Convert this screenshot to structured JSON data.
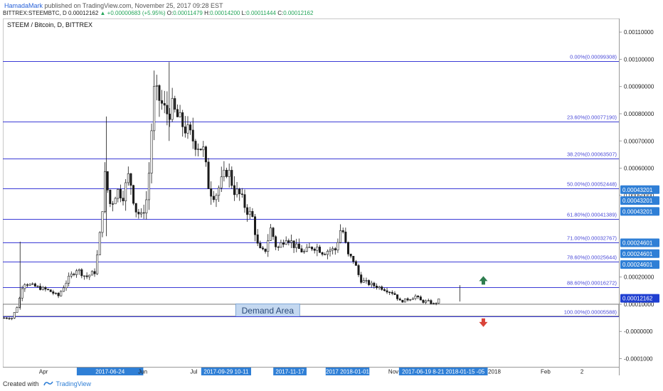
{
  "header": {
    "author": "HamadaMark",
    "published_text": "published on TradingView.com, November 25, 2017 09:28 EST",
    "symbol": "BITTREX:STEEMBTC, D",
    "last": "0.00012162",
    "change": "▲ +0.00000683 (+5.95%)",
    "o_label": "O:",
    "o": "0.00011479",
    "h_label": "H:",
    "h": "0.00014200",
    "l_label": "L:",
    "l": "0.00011444",
    "c_label": "C:",
    "c": "0.00012162"
  },
  "colors": {
    "fib_line": "#3b3bd6",
    "fib_text": "#4a4ad8",
    "candle": "#1a1a1a",
    "axis_blue_bg": "#2f7fd6",
    "demand_box": "#c4d8f0",
    "up_arrow": "#2e7d4f",
    "down_arrow": "#d9443a",
    "date_highlight": "#2f7fd6"
  },
  "footer": {
    "created_with": "Created with",
    "brand": "TradingView"
  },
  "chart_data": {
    "type": "candlestick",
    "title": "STEEM / Bitcoin, D, BITTREX",
    "ylim": [
      -0.00013,
      0.00115
    ],
    "y_ticks": [
      "0.00110000",
      "0.00100000",
      "0.00090000",
      "0.00080000",
      "0.00070000",
      "0.00060000",
      "0.00050000",
      "0.00020000",
      "0.00010000",
      "-0.0000000",
      "-0.0001000"
    ],
    "y_tick_values": [
      0.0011,
      0.001,
      0.0009,
      0.0008,
      0.0007,
      0.0006,
      0.0005,
      0.0002,
      0.0001,
      0.0,
      -0.0001
    ],
    "y_badges": [
      {
        "label": "0.00043201",
        "value": 0.000521
      },
      {
        "label": "0.00043201",
        "value": 0.000481
      },
      {
        "label": "0.00043201",
        "value": 0.000441
      },
      {
        "label": "0.00024601",
        "value": 0.000326
      },
      {
        "label": "0.00024601",
        "value": 0.000286
      },
      {
        "label": "0.00024601",
        "value": 0.000246
      },
      {
        "label": "0.00012162",
        "value": 0.00012162,
        "current": true
      }
    ],
    "fib_levels": [
      {
        "label": "0.00%(0.00099308)",
        "value": 0.00099308
      },
      {
        "label": "23.60%(0.00077190)",
        "value": 0.0007719
      },
      {
        "label": "38.20%(0.00063507)",
        "value": 0.00063507
      },
      {
        "label": "50.00%(0.00052448)",
        "value": 0.00052448
      },
      {
        "label": "61.80%(0.00041389)",
        "value": 0.00041389
      },
      {
        "label": "71.00%(0.00032767)",
        "value": 0.00032767
      },
      {
        "label": "78.60%(0.00025644)",
        "value": 0.00025644
      },
      {
        "label": "88.60%(0.00016272)",
        "value": 0.00016272
      },
      {
        "label": "100.00%(0.00005588)",
        "value": 5.588e-05
      }
    ],
    "demand_area": {
      "label": "Demand Area",
      "top": 0.0001,
      "bottom": 5.588e-05
    },
    "x_ticks": [
      {
        "label": "Apr",
        "pos": 0.066
      },
      {
        "label": "Jun",
        "pos": 0.227
      },
      {
        "label": "Jul",
        "pos": 0.31
      },
      {
        "label": "Nov",
        "pos": 0.634
      },
      {
        "label": "2018",
        "pos": 0.798
      },
      {
        "label": "Feb",
        "pos": 0.881
      },
      {
        "label": "2",
        "pos": 0.94
      }
    ],
    "x_highlight_segments": [
      {
        "label": "2017-06-24",
        "start": 0.12,
        "end": 0.228
      },
      {
        "label": "2017-09-29  10-11",
        "start": 0.322,
        "end": 0.403
      },
      {
        "label": "2017-11-17",
        "start": 0.439,
        "end": 0.493
      },
      {
        "label": "2017 2018-01-01",
        "start": 0.524,
        "end": 0.595
      },
      {
        "label": "2017-06-19  8-21  2018-01-15 -05",
        "start": 0.643,
        "end": 0.787
      }
    ],
    "price_path": [
      {
        "t": 0.0,
        "v": 5e-05
      },
      {
        "t": 0.015,
        "v": 5e-05
      },
      {
        "t": 0.025,
        "v": 0.0001
      },
      {
        "t": 0.033,
        "v": 0.00018
      },
      {
        "t": 0.045,
        "v": 0.00017
      },
      {
        "t": 0.06,
        "v": 0.00016
      },
      {
        "t": 0.075,
        "v": 0.00015
      },
      {
        "t": 0.09,
        "v": 0.00013
      },
      {
        "t": 0.105,
        "v": 0.00019
      },
      {
        "t": 0.12,
        "v": 0.00023
      },
      {
        "t": 0.135,
        "v": 0.0002
      },
      {
        "t": 0.15,
        "v": 0.00022
      },
      {
        "t": 0.16,
        "v": 0.0004
      },
      {
        "t": 0.165,
        "v": 0.00058
      },
      {
        "t": 0.175,
        "v": 0.00046
      },
      {
        "t": 0.185,
        "v": 0.00052
      },
      {
        "t": 0.195,
        "v": 0.0005
      },
      {
        "t": 0.205,
        "v": 0.00058
      },
      {
        "t": 0.215,
        "v": 0.00045
      },
      {
        "t": 0.225,
        "v": 0.00042
      },
      {
        "t": 0.235,
        "v": 0.0005
      },
      {
        "t": 0.245,
        "v": 0.00088
      },
      {
        "t": 0.255,
        "v": 0.00085
      },
      {
        "t": 0.265,
        "v": 0.0008
      },
      {
        "t": 0.275,
        "v": 0.00082
      },
      {
        "t": 0.285,
        "v": 0.00078
      },
      {
        "t": 0.295,
        "v": 0.00075
      },
      {
        "t": 0.31,
        "v": 0.0007
      },
      {
        "t": 0.325,
        "v": 0.00067
      },
      {
        "t": 0.335,
        "v": 0.00052
      },
      {
        "t": 0.345,
        "v": 0.0005
      },
      {
        "t": 0.355,
        "v": 0.00055
      },
      {
        "t": 0.365,
        "v": 0.0006
      },
      {
        "t": 0.375,
        "v": 0.00052
      },
      {
        "t": 0.385,
        "v": 0.0005
      },
      {
        "t": 0.395,
        "v": 0.00045
      },
      {
        "t": 0.405,
        "v": 0.00042
      },
      {
        "t": 0.415,
        "v": 0.0003
      },
      {
        "t": 0.425,
        "v": 0.00029
      },
      {
        "t": 0.435,
        "v": 0.00038
      },
      {
        "t": 0.445,
        "v": 0.0003
      },
      {
        "t": 0.46,
        "v": 0.00035
      },
      {
        "t": 0.475,
        "v": 0.00031
      },
      {
        "t": 0.49,
        "v": 0.00029
      },
      {
        "t": 0.5,
        "v": 0.00031
      },
      {
        "t": 0.51,
        "v": 0.00031
      },
      {
        "t": 0.52,
        "v": 0.00029
      },
      {
        "t": 0.53,
        "v": 0.0003
      },
      {
        "t": 0.54,
        "v": 0.0003
      },
      {
        "t": 0.55,
        "v": 0.00039
      },
      {
        "t": 0.56,
        "v": 0.00028
      },
      {
        "t": 0.57,
        "v": 0.00026
      },
      {
        "t": 0.58,
        "v": 0.00019
      },
      {
        "t": 0.59,
        "v": 0.00018
      },
      {
        "t": 0.6,
        "v": 0.00017
      },
      {
        "t": 0.615,
        "v": 0.00016
      },
      {
        "t": 0.625,
        "v": 0.00015
      },
      {
        "t": 0.635,
        "v": 0.00014
      },
      {
        "t": 0.645,
        "v": 0.00011
      },
      {
        "t": 0.66,
        "v": 0.00012
      },
      {
        "t": 0.67,
        "v": 0.00013
      },
      {
        "t": 0.68,
        "v": 0.00011
      },
      {
        "t": 0.69,
        "v": 0.00011
      },
      {
        "t": 0.7,
        "v": 0.0001
      },
      {
        "t": 0.71,
        "v": 0.00012
      }
    ]
  }
}
